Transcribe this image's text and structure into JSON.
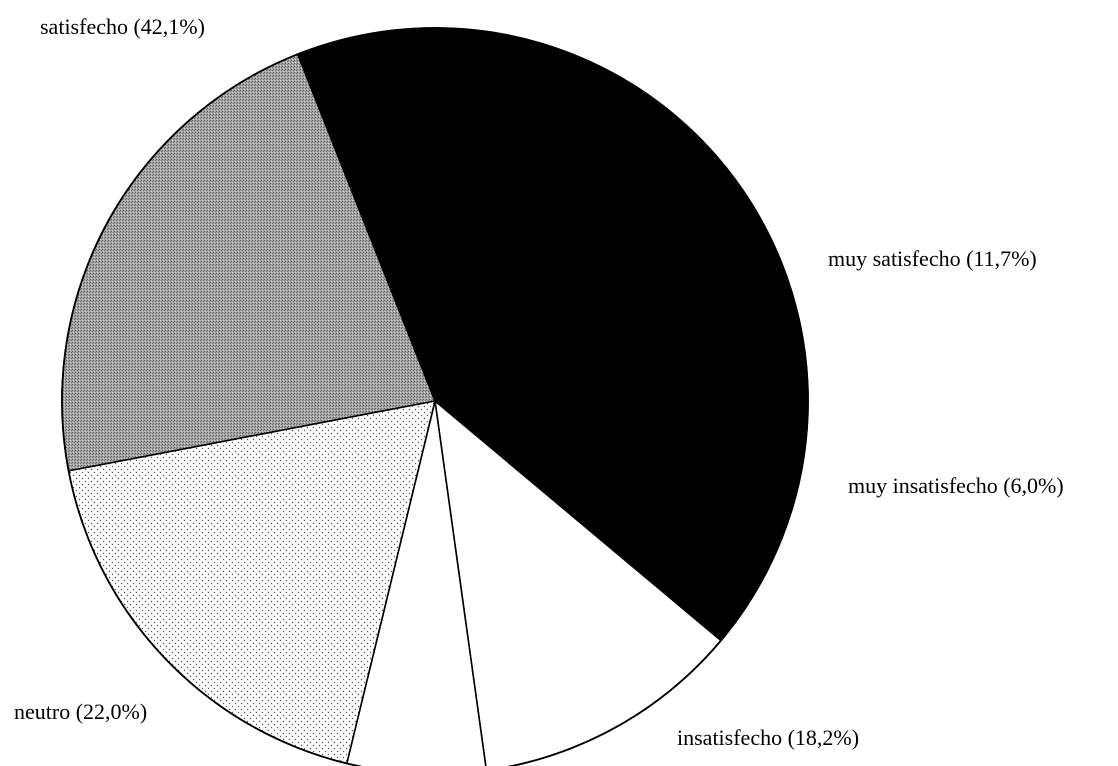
{
  "chart_data": {
    "type": "pie",
    "categories": [
      "satisfecho",
      "muy satisfecho",
      "muy insatisfecho",
      "insatisfecho",
      "neutro"
    ],
    "values": [
      42.1,
      11.7,
      6.0,
      18.2,
      22.0
    ],
    "labels": [
      "satisfecho (42,1%)",
      "muy satisfecho (11,7%)",
      "muy insatisfecho (6,0%)",
      "insatisfecho (18,2%)",
      "neutro (22,0%)"
    ],
    "fills": [
      "solid-black",
      "white",
      "white",
      "light-dot-pattern",
      "dense-gray-pattern"
    ],
    "colors": {
      "satisfecho": "#000000",
      "muy insatisfecho": "#ffffff",
      "insatisfecho": "#ffffff",
      "neutro": "#8c8c8c",
      "outline": "#000000"
    }
  }
}
